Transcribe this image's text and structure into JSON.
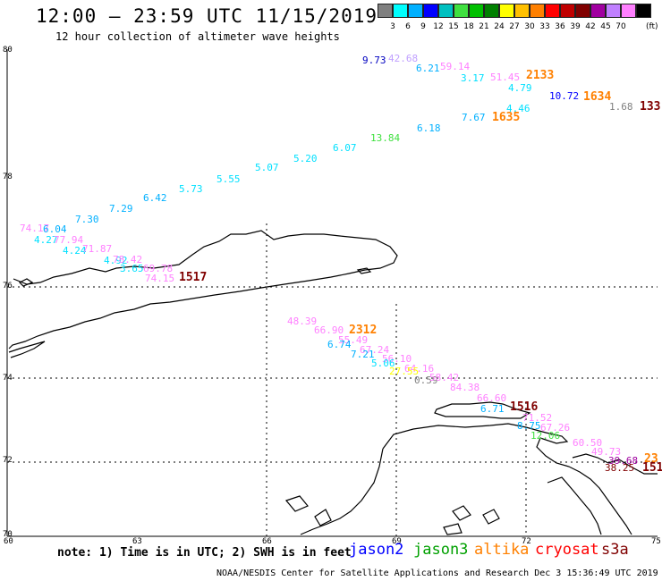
{
  "title": "12:00 — 23:59 UTC 11/15/2019",
  "subtitle": "12 hour collection of altimeter wave heights",
  "legend": {
    "colors": [
      "#808080",
      "#00ffff",
      "#00b0ff",
      "#0000ff",
      "#00c0c0",
      "#40e040",
      "#00c000",
      "#008000",
      "#ffff00",
      "#ffc000",
      "#ff8000",
      "#ff0000",
      "#c00000",
      "#800000",
      "#a000a0",
      "#c080ff",
      "#ff80ff",
      "#000000"
    ],
    "labels": [
      "3",
      "6",
      "9",
      "12",
      "15",
      "18",
      "21",
      "24",
      "27",
      "30",
      "33",
      "36",
      "39",
      "42",
      "45",
      "70"
    ],
    "unit": "(ft)"
  },
  "axes": {
    "lat_labels": [
      "80",
      "78",
      "76",
      "74",
      "72",
      "70"
    ],
    "lon_labels": [
      "60",
      "63",
      "66",
      "69",
      "72",
      "75"
    ]
  },
  "observations": [
    {
      "text": "9.73",
      "color": "#0000c0"
    },
    {
      "text": "42.68",
      "color": "#c0a0ff"
    },
    {
      "text": "6.21",
      "color": "#00b0ff"
    },
    {
      "text": "59.14",
      "color": "#ff80ff"
    },
    {
      "text": "3.17",
      "color": "#00e0ff"
    },
    {
      "text": "51.45",
      "color": "#ff80ff"
    },
    {
      "text": "2133",
      "color": "#ff8000",
      "big": true
    },
    {
      "text": "4.79",
      "color": "#00e0ff"
    },
    {
      "text": "10.72",
      "color": "#0000ff"
    },
    {
      "text": "1634",
      "color": "#ff8000",
      "big": true
    },
    {
      "text": "1.68",
      "color": "#808080"
    },
    {
      "text": "133",
      "color": "#800000",
      "big": true
    },
    {
      "text": "4.46",
      "color": "#00e0ff"
    },
    {
      "text": "1635",
      "color": "#ff8000",
      "big": true
    },
    {
      "text": "7.67",
      "color": "#00b0ff"
    },
    {
      "text": "13.84",
      "color": "#40e040"
    },
    {
      "text": "6.18",
      "color": "#00b0ff"
    },
    {
      "text": "6.07",
      "color": "#00e0ff"
    },
    {
      "text": "5.20",
      "color": "#00e0ff"
    },
    {
      "text": "5.07",
      "color": "#00e0ff"
    },
    {
      "text": "5.55",
      "color": "#00e0ff"
    },
    {
      "text": "5.73",
      "color": "#00e0ff"
    },
    {
      "text": "6.42",
      "color": "#00b0ff"
    },
    {
      "text": "7.29",
      "color": "#00b0ff"
    },
    {
      "text": "7.30",
      "color": "#00b0ff"
    },
    {
      "text": "74.17",
      "color": "#ff80ff"
    },
    {
      "text": "6.04",
      "color": "#00b0ff"
    },
    {
      "text": "4.27",
      "color": "#00e0ff"
    },
    {
      "text": "77.94",
      "color": "#ff80ff"
    },
    {
      "text": "4.24",
      "color": "#00e0ff"
    },
    {
      "text": "71.87",
      "color": "#ff80ff"
    },
    {
      "text": "4.92",
      "color": "#00e0ff"
    },
    {
      "text": "78.42",
      "color": "#ff80ff"
    },
    {
      "text": "3.65",
      "color": "#00e0ff"
    },
    {
      "text": "69.78",
      "color": "#ff80ff"
    },
    {
      "text": "74.15",
      "color": "#ff80ff"
    },
    {
      "text": "1517",
      "color": "#800000",
      "big": true
    },
    {
      "text": "48.39",
      "color": "#ff80ff"
    },
    {
      "text": "66.90",
      "color": "#ff80ff"
    },
    {
      "text": "2312",
      "color": "#ff8000",
      "big": true
    },
    {
      "text": "55.49",
      "color": "#ff80ff"
    },
    {
      "text": "6.74",
      "color": "#00b0ff"
    },
    {
      "text": "67.24",
      "color": "#ff80ff"
    },
    {
      "text": "7.21",
      "color": "#00b0ff"
    },
    {
      "text": "56.10",
      "color": "#ff80ff"
    },
    {
      "text": "5.06",
      "color": "#00e0ff"
    },
    {
      "text": "64.16",
      "color": "#ff80ff"
    },
    {
      "text": "27.55",
      "color": "#ffff00"
    },
    {
      "text": "0.59",
      "color": "#808080"
    },
    {
      "text": "58.42",
      "color": "#ff80ff"
    },
    {
      "text": "84.38",
      "color": "#ff80ff"
    },
    {
      "text": "66.60",
      "color": "#ff80ff"
    },
    {
      "text": "6.71",
      "color": "#00b0ff"
    },
    {
      "text": "1516",
      "color": "#800000",
      "big": true
    },
    {
      "text": "71.52",
      "color": "#ff80ff"
    },
    {
      "text": "8.75",
      "color": "#00b0ff"
    },
    {
      "text": "67.26",
      "color": "#ff80ff"
    },
    {
      "text": "12.06",
      "color": "#40e040"
    },
    {
      "text": "60.50",
      "color": "#ff80ff"
    },
    {
      "text": "49.73",
      "color": "#ff80ff"
    },
    {
      "text": "39.68",
      "color": "#a000a0"
    },
    {
      "text": "23",
      "color": "#ff8000",
      "big": true
    },
    {
      "text": "38.25",
      "color": "#800000"
    },
    {
      "text": "151",
      "color": "#800000",
      "big": true
    }
  ],
  "note": "note: 1) Time is in UTC; 2) SWH is in feet",
  "satellites": [
    {
      "name": "jason2",
      "color": "#0000ff"
    },
    {
      "name": "jason3",
      "color": "#00a000"
    },
    {
      "name": "altika",
      "color": "#ff8000"
    },
    {
      "name": "cryosat",
      "color": "#ff0000"
    },
    {
      "name": "s3a",
      "color": "#800000"
    }
  ],
  "footer": "NOAA/NESDIS Center for Satellite Applications and Research   Dec  3 15:36:49 UTC 2019"
}
